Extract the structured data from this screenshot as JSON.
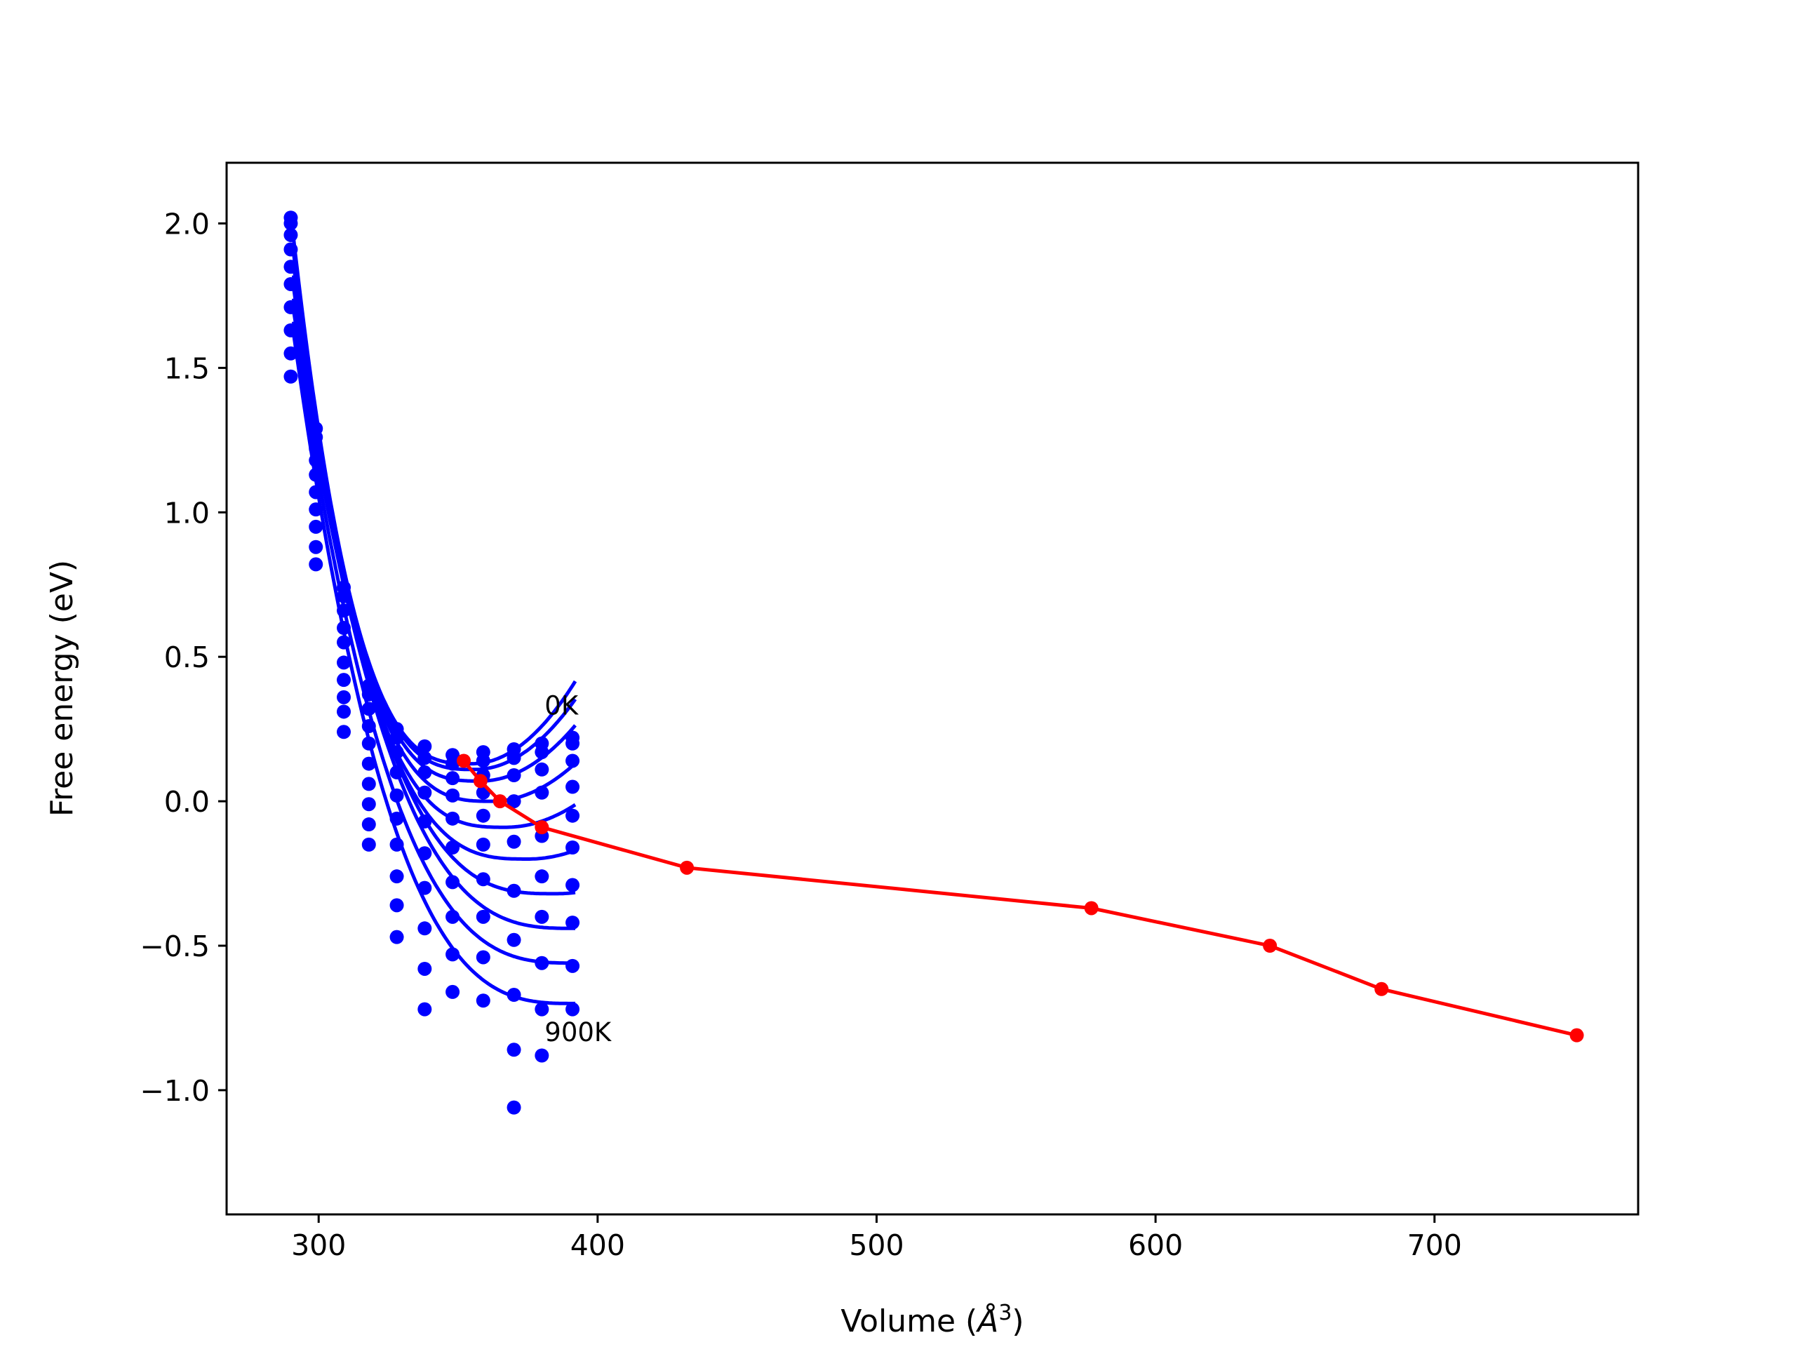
{
  "chart_data": {
    "type": "scatter",
    "title": "",
    "xlabel_prefix": "Volume (",
    "xlabel_symbol": "Å",
    "xlabel_exp": "3",
    "xlabel_suffix": ")",
    "ylabel": "Free energy (eV)",
    "xlim": [
      267,
      773
    ],
    "ylim": [
      -1.43,
      2.21
    ],
    "xticks": [
      300,
      400,
      500,
      600,
      700
    ],
    "xtick_labels": [
      "300",
      "400",
      "500",
      "600",
      "700"
    ],
    "yticks": [
      2.0,
      1.5,
      1.0,
      0.5,
      0.0,
      -0.5,
      -1.0
    ],
    "ytick_labels": [
      "2.0",
      "1.5",
      "1.0",
      "0.5",
      "0.0",
      "−0.5",
      "−1.0"
    ],
    "grid": false,
    "annotations": [
      {
        "text": "0K",
        "x": 381,
        "y": 0.3
      },
      {
        "text": "900K",
        "x": 381,
        "y": -0.83
      }
    ],
    "fit_curves": {
      "color": "#0000ff",
      "x_range": [
        291,
        392
      ],
      "V0": [
        355,
        356,
        358,
        362,
        367,
        375,
        385,
        392,
        392,
        392
      ],
      "E0": [
        0.13,
        0.11,
        0.07,
        0.0,
        -0.09,
        -0.2,
        -0.32,
        -0.44,
        -0.56,
        -0.7
      ],
      "E_at_291": [
        1.95,
        1.93,
        1.9,
        1.86,
        1.82,
        1.78,
        1.74,
        1.7,
        1.66,
        1.62
      ]
    },
    "series": [
      {
        "color": "#0000ff",
        "x": [
          290,
          290,
          290,
          290,
          290,
          290,
          290,
          290,
          290,
          290,
          299,
          299,
          299,
          299,
          299,
          299,
          299,
          299,
          299,
          299,
          309,
          309,
          309,
          309,
          309,
          309,
          309,
          309,
          309,
          309,
          318,
          318,
          318,
          318,
          318,
          318,
          318,
          318,
          318,
          318,
          328,
          328,
          328,
          328,
          328,
          328,
          328,
          328,
          328,
          328,
          338,
          338,
          338,
          338,
          338,
          338,
          338,
          338,
          338,
          338,
          348,
          348,
          348,
          348,
          348,
          348,
          348,
          348,
          348,
          348,
          359,
          359,
          359,
          359,
          359,
          359,
          359,
          359,
          359,
          359,
          370,
          370,
          370,
          370,
          370,
          370,
          370,
          370,
          370,
          370,
          380,
          380,
          380,
          380,
          380,
          380,
          380,
          380,
          380,
          380,
          391,
          391,
          391,
          391,
          391,
          391,
          391,
          391,
          391,
          391
        ],
        "y": [
          2.02,
          2.0,
          1.96,
          1.91,
          1.85,
          1.79,
          1.71,
          1.63,
          1.55,
          1.47,
          1.29,
          1.26,
          1.22,
          1.18,
          1.13,
          1.07,
          1.01,
          0.95,
          0.88,
          0.82,
          0.74,
          0.71,
          0.66,
          0.6,
          0.55,
          0.48,
          0.42,
          0.36,
          0.31,
          0.24,
          0.4,
          0.37,
          0.32,
          0.26,
          0.2,
          0.13,
          0.06,
          -0.01,
          -0.08,
          -0.15,
          0.25,
          0.22,
          0.17,
          0.1,
          0.02,
          -0.06,
          -0.15,
          -0.26,
          -0.36,
          -0.47,
          0.19,
          0.15,
          0.1,
          0.03,
          -0.07,
          -0.18,
          -0.3,
          -0.44,
          -0.58,
          -0.72,
          0.16,
          0.13,
          0.08,
          0.02,
          -0.06,
          -0.16,
          -0.28,
          -0.4,
          -0.53,
          -0.66,
          0.17,
          0.14,
          0.09,
          0.03,
          -0.05,
          -0.15,
          -0.27,
          -0.4,
          -0.54,
          -0.69,
          0.18,
          0.15,
          0.09,
          0.0,
          -0.14,
          -0.31,
          -0.48,
          -0.67,
          -0.86,
          -1.06,
          0.2,
          0.17,
          0.11,
          0.03,
          -0.12,
          -0.26,
          -0.4,
          -0.56,
          -0.72,
          -0.88,
          0.22,
          0.2,
          0.14,
          0.05,
          -0.05,
          -0.16,
          -0.29,
          -0.42,
          -0.57,
          -0.72
        ]
      },
      {
        "color": "#ff0000",
        "x": [
          352,
          358,
          365,
          380,
          432,
          577,
          641,
          681,
          751
        ],
        "y": [
          0.14,
          0.07,
          0.0,
          -0.09,
          -0.23,
          -0.37,
          -0.5,
          -0.65,
          -0.81
        ]
      }
    ]
  }
}
